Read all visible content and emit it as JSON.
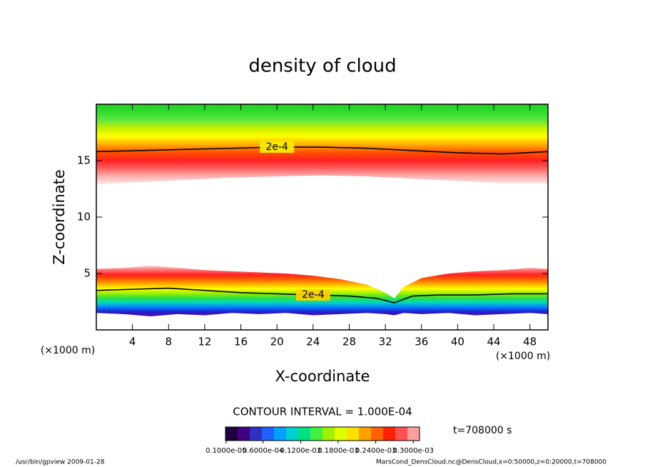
{
  "chart_data": {
    "type": "contour",
    "title": "density of cloud",
    "x_label": "X-coordinate",
    "y_label": "Z-coordinate",
    "x_unit": "(×1000 m)",
    "y_unit": "(×1000 m)",
    "xlim": [
      0,
      50
    ],
    "ylim": [
      0,
      20
    ],
    "xticks": [
      4,
      8,
      12,
      16,
      20,
      24,
      28,
      32,
      36,
      40,
      44,
      48
    ],
    "yticks": [
      5,
      10,
      15
    ],
    "layers": [
      {
        "x": [
          0,
          5,
          10,
          15,
          20,
          25,
          30,
          35,
          40,
          45,
          50
        ],
        "bottom": [
          12.9,
          13.1,
          13.3,
          13.5,
          13.6,
          13.7,
          13.6,
          13.4,
          13.2,
          13.0,
          13.0
        ],
        "top": [
          20,
          20,
          20,
          20,
          20,
          20,
          20,
          20,
          20,
          20,
          20
        ],
        "colors": [
          "#20d020",
          "#30dc30",
          "#60e840",
          "#c8f000",
          "#ffff00",
          "#ffb000",
          "#ff5000",
          "#ff2020",
          "#ff6060",
          "#ffb0b0",
          "#ffe8e8"
        ]
      },
      {
        "x": [
          0,
          3,
          6,
          9,
          12,
          15,
          18,
          21,
          24,
          27,
          30,
          32,
          33,
          34,
          36,
          39,
          42,
          45,
          48,
          50
        ],
        "bottom": [
          1.5,
          1.4,
          1.2,
          1.4,
          1.3,
          1.5,
          1.4,
          1.5,
          1.3,
          1.4,
          1.5,
          1.4,
          1.3,
          1.5,
          1.4,
          1.5,
          1.3,
          1.4,
          1.5,
          1.4
        ],
        "top": [
          5.4,
          5.5,
          5.7,
          5.5,
          5.3,
          5.2,
          5.1,
          5.0,
          4.8,
          4.5,
          4.0,
          3.3,
          2.8,
          3.8,
          4.6,
          5.0,
          5.2,
          5.3,
          5.5,
          5.4
        ],
        "colors": [
          "#ffd0d0",
          "#ff7070",
          "#ff2020",
          "#ff6000",
          "#ffb000",
          "#ffff00",
          "#a0f000",
          "#30e040",
          "#00d8c0",
          "#0080ff",
          "#2020d0",
          "#6000a0"
        ]
      }
    ],
    "contours": [
      {
        "label": "2e-4",
        "x": [
          0,
          5,
          10,
          15,
          20,
          25,
          30,
          35,
          40,
          45,
          50
        ],
        "z": [
          15.8,
          15.9,
          16.0,
          16.1,
          16.2,
          16.2,
          16.1,
          15.9,
          15.7,
          15.6,
          15.8
        ]
      },
      {
        "label": "2e-4",
        "x": [
          0,
          4,
          8,
          12,
          16,
          20,
          24,
          28,
          31,
          33,
          35,
          38,
          42,
          46,
          50
        ],
        "z": [
          3.5,
          3.6,
          3.7,
          3.5,
          3.3,
          3.2,
          3.1,
          3.0,
          2.8,
          2.4,
          3.0,
          3.1,
          3.1,
          3.2,
          3.2
        ]
      }
    ],
    "contour_interval": "CONTOUR INTERVAL = 1.000E-04",
    "time_label": "t=708000 s",
    "colorbar": {
      "clim": [
        0,
        0.00031
      ],
      "colors": [
        "#200040",
        "#400080",
        "#3030c0",
        "#2060ff",
        "#00a0ff",
        "#00d0d0",
        "#00e080",
        "#40f040",
        "#a0f000",
        "#e0ff00",
        "#ffe000",
        "#ffa000",
        "#ff6000",
        "#ff2000",
        "#ff5050",
        "#ffa0a0"
      ],
      "ticks": [
        {
          "value": 1e-06,
          "label": "0.1000e-05"
        },
        {
          "value": 6e-05,
          "label": "0.6000e-04"
        },
        {
          "value": 0.00012,
          "label": "0.1200e-03"
        },
        {
          "value": 0.00018,
          "label": "0.1800e-03"
        },
        {
          "value": 0.00024,
          "label": "0.2400e-03"
        },
        {
          "value": 0.0003,
          "label": "0.3000e-03"
        }
      ]
    },
    "footer_left": "/usr/bin/gpview  2009-01-28",
    "footer_right": "MarsCond_DensCloud.nc@DensCloud,x=0:50000,z=0:20000,t=708000"
  }
}
